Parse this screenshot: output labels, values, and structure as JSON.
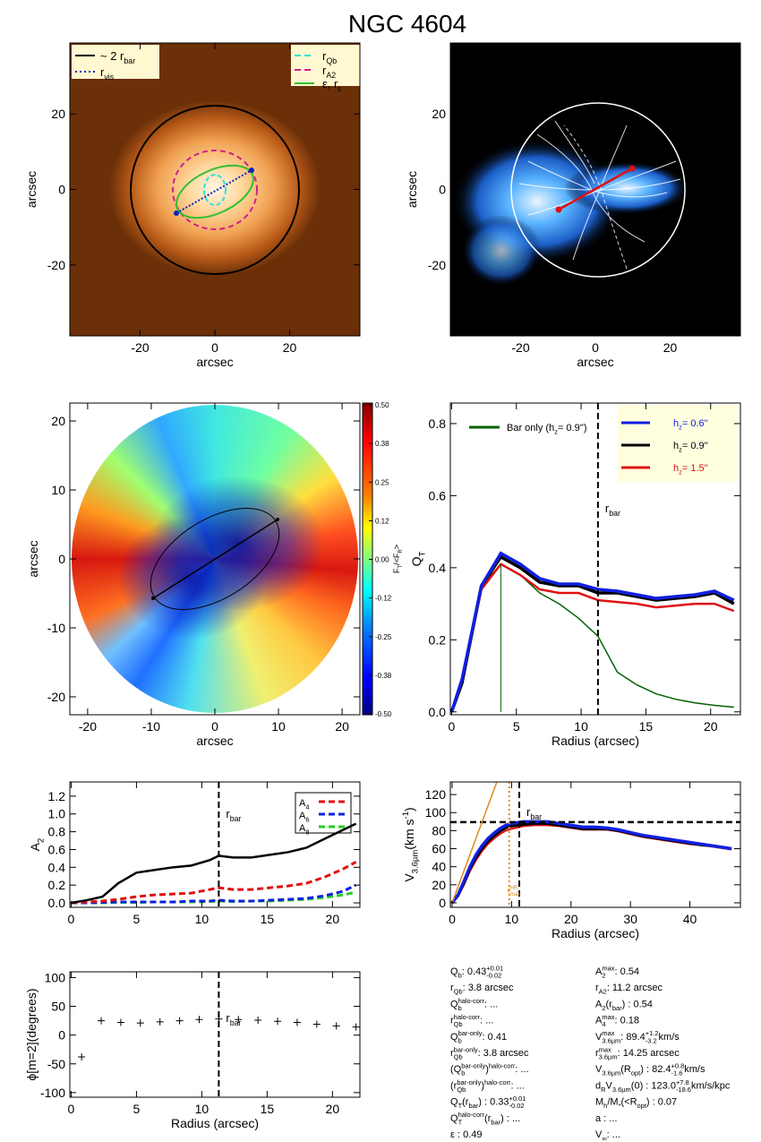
{
  "title": "NGC 4604",
  "chart_data": [
    {
      "type": "image",
      "xlabel": "arcsec",
      "ylabel": "arcsec",
      "xlim": [
        -38.8,
        38.8
      ],
      "ylim": [
        -38.8,
        38.8
      ],
      "xticks": [
        -20,
        0,
        20
      ],
      "yticks": [
        -20,
        0,
        20
      ],
      "legend": [
        {
          "label": [
            {
              "text": "~ 2 r"
            },
            {
              "sub": "bar"
            }
          ],
          "color": "#000000",
          "dash": "solid"
        },
        {
          "label": [
            {
              "text": "r"
            },
            {
              "sub": "vis"
            }
          ],
          "color": "#1020c0",
          "dash": "dotted"
        },
        {
          "label": [
            {
              "text": "r"
            },
            {
              "sub": "Qb"
            }
          ],
          "color": "#30e0e0",
          "dash": "dashed"
        },
        {
          "label": [
            {
              "text": "r"
            },
            {
              "sub": "A2"
            }
          ],
          "color": "#d0208a",
          "dash": "dashed"
        },
        {
          "label": [
            {
              "text": "ε, r"
            },
            {
              "sub": "ε"
            }
          ],
          "color": "#30c030",
          "dash": "solid"
        }
      ]
    },
    {
      "type": "image",
      "xlabel": "arcsec",
      "ylabel": "arcsec",
      "xlim": [
        -38.8,
        38.8
      ],
      "ylim": [
        -38.8,
        38.8
      ],
      "xticks": [
        -20,
        0,
        20
      ],
      "yticks": [
        -20,
        0,
        20
      ]
    },
    {
      "type": "polar_map",
      "xlabel": "arcsec",
      "ylabel": "arcsec",
      "xlim": [
        -22.8,
        22.8
      ],
      "ylim": [
        -22.6,
        22.6
      ],
      "xticks": [
        -20,
        -10,
        0,
        10,
        20
      ],
      "yticks": [
        -20,
        -10,
        0,
        10,
        20
      ],
      "colorbar": {
        "label": [
          {
            "text": "F"
          },
          {
            "sub": "T"
          },
          {
            "text": "/<F"
          },
          {
            "sub": "R"
          },
          {
            "text": ">"
          }
        ],
        "lim": [
          -0.5,
          0.5
        ],
        "ticks": [
          {
            "value": 0.5,
            "label": "0.50"
          },
          {
            "value": 0.375,
            "label": "0.38"
          },
          {
            "value": 0.25,
            "label": "0.25"
          },
          {
            "value": 0.125,
            "label": "0.12"
          },
          {
            "value": 0,
            "label": "0.00"
          },
          {
            "value": -0.125,
            "label": "-0.12"
          },
          {
            "value": -0.25,
            "label": "-0.25"
          },
          {
            "value": -0.375,
            "label": "-0.38"
          },
          {
            "value": -0.5,
            "label": "-0.50"
          }
        ]
      }
    },
    {
      "type": "line",
      "xlabel": "Radius (arcsec)",
      "ylabel": [
        {
          "text": "Q"
        },
        {
          "sub": "T"
        }
      ],
      "xlim": [
        -0.1,
        22.3
      ],
      "ylim": [
        -0.008,
        0.857
      ],
      "xticks": [
        0,
        5,
        10,
        15,
        20
      ],
      "yticks": [
        {
          "value": 0,
          "label": "0.0"
        },
        {
          "value": 0.2,
          "label": "0.2"
        },
        {
          "value": 0.4,
          "label": "0.4"
        },
        {
          "value": 0.6,
          "label": "0.6"
        },
        {
          "value": 0.8,
          "label": "0.8"
        }
      ],
      "x": [
        0,
        0.8,
        2.3,
        3.8,
        5.3,
        6.8,
        8.3,
        9.8,
        11.3,
        12.8,
        14.3,
        15.8,
        17.3,
        18.8,
        20.3,
        21.8
      ],
      "series": [
        {
          "name": [
            {
              "text": "h"
            },
            {
              "sub": "z"
            },
            {
              "text": "=  0.6''"
            }
          ],
          "color": "#1020e0",
          "values": [
            0,
            0.09,
            0.35,
            0.44,
            0.41,
            0.37,
            0.355,
            0.355,
            0.34,
            0.335,
            0.325,
            0.315,
            0.32,
            0.325,
            0.335,
            0.31
          ]
        },
        {
          "name": [
            {
              "text": "h"
            },
            {
              "sub": "z"
            },
            {
              "text": "=  0.9''"
            }
          ],
          "color": "#000000",
          "values": [
            0,
            0.08,
            0.35,
            0.43,
            0.4,
            0.36,
            0.35,
            0.35,
            0.33,
            0.33,
            0.32,
            0.31,
            0.315,
            0.32,
            0.33,
            0.3
          ]
        },
        {
          "name": [
            {
              "text": "h"
            },
            {
              "sub": "z"
            },
            {
              "text": "=  1.5''"
            }
          ],
          "color": "#e01010",
          "values": [
            0,
            0.08,
            0.34,
            0.41,
            0.38,
            0.34,
            0.33,
            0.33,
            0.31,
            0.305,
            0.3,
            0.29,
            0.295,
            0.3,
            0.3,
            0.28
          ]
        },
        {
          "name": [
            {
              "text": "Bar only (h"
            },
            {
              "sub": "z"
            },
            {
              "text": "=  0.9'')"
            }
          ],
          "color": "#006400",
          "values": [
            0,
            0.08,
            0.35,
            0.41,
            0.38,
            0.33,
            0.3,
            0.26,
            0.21,
            0.11,
            0.075,
            0.05,
            0.035,
            0.025,
            0.018,
            0.013
          ]
        }
      ],
      "vlines": [
        {
          "x": 11.3,
          "label": [
            {
              "text": "r"
            },
            {
              "sub": "bar"
            }
          ],
          "color": "#000000",
          "dash": "dashed"
        }
      ]
    },
    {
      "type": "line",
      "ylabel": [
        {
          "text": "A"
        },
        {
          "sub": "2"
        }
      ],
      "xlim": [
        -0.1,
        22.1
      ],
      "ylim": [
        -0.05,
        1.36
      ],
      "xticks": [
        0,
        5,
        10,
        15,
        20
      ],
      "yticks": [
        {
          "value": 0,
          "label": "0.0"
        },
        {
          "value": 0.2,
          "label": "0.2"
        },
        {
          "value": 0.4,
          "label": "0.4"
        },
        {
          "value": 0.6,
          "label": "0.6"
        },
        {
          "value": 0.8,
          "label": "0.8"
        },
        {
          "value": 1,
          "label": "1.0"
        },
        {
          "value": 1.2,
          "label": "1.2"
        }
      ],
      "x": [
        0,
        1.2,
        2.4,
        3.6,
        5,
        6.4,
        7.8,
        9.2,
        10.6,
        11.3,
        12.4,
        13.8,
        15.2,
        16.6,
        18,
        19.4,
        20.8,
        21.8
      ],
      "series": [
        {
          "color": "#000000",
          "dash": "solid",
          "values": [
            0,
            0.03,
            0.07,
            0.22,
            0.34,
            0.37,
            0.4,
            0.42,
            0.48,
            0.53,
            0.51,
            0.51,
            0.54,
            0.57,
            0.62,
            0.72,
            0.82,
            0.89
          ]
        },
        {
          "name": [
            {
              "text": "A"
            },
            {
              "sub": "4"
            }
          ],
          "color": "#e01010",
          "dash": "dashed",
          "values": [
            0,
            0.01,
            0.02,
            0.04,
            0.07,
            0.09,
            0.1,
            0.11,
            0.15,
            0.17,
            0.15,
            0.15,
            0.17,
            0.19,
            0.22,
            0.29,
            0.38,
            0.46
          ]
        },
        {
          "name": [
            {
              "text": "A"
            },
            {
              "sub": "6"
            }
          ],
          "color": "#1020e0",
          "dash": "dashed",
          "values": [
            0,
            0,
            0.005,
            0.01,
            0.01,
            0.01,
            0.01,
            0.02,
            0.02,
            0.03,
            0.02,
            0.02,
            0.03,
            0.04,
            0.05,
            0.08,
            0.13,
            0.2
          ]
        },
        {
          "name": [
            {
              "text": "A"
            },
            {
              "sub": "8"
            }
          ],
          "color": "#20d020",
          "dash": "dashed",
          "values": [
            0,
            0,
            0,
            0.005,
            0.005,
            0.01,
            0.01,
            0.01,
            0.015,
            0.02,
            0.015,
            0.02,
            0.02,
            0.03,
            0.04,
            0.06,
            0.09,
            0.12
          ]
        }
      ],
      "vlines": [
        {
          "x": 11.3,
          "label": [
            {
              "text": "r"
            },
            {
              "sub": "bar"
            }
          ],
          "color": "#000000",
          "dash": "dashed"
        }
      ]
    },
    {
      "type": "line",
      "xlabel": "Radius (arcsec)",
      "ylabel": [
        {
          "text": "V"
        },
        {
          "sub": "3.6µm"
        },
        {
          "text": " (km s"
        },
        {
          "sup": "-1"
        },
        {
          "text": ")"
        }
      ],
      "xlim": [
        -0.3,
        48.5
      ],
      "ylim": [
        -5,
        134
      ],
      "xticks": [
        0,
        10,
        20,
        30,
        40
      ],
      "yticks": [
        0,
        20,
        40,
        60,
        80,
        100,
        120
      ],
      "x": [
        0,
        1,
        2,
        3,
        4,
        5,
        6,
        7,
        8,
        9,
        10,
        12,
        14,
        16,
        18,
        20,
        22,
        24,
        26,
        28,
        30,
        32,
        34,
        36,
        38,
        40,
        42,
        44,
        46,
        47
      ],
      "series": [
        {
          "color": "#1020e0",
          "values": [
            0,
            9,
            24,
            40,
            53,
            63,
            71,
            77,
            82,
            86,
            88,
            90,
            90,
            90,
            88,
            86,
            84,
            84,
            83,
            81,
            78,
            75,
            73,
            71,
            69,
            67,
            65,
            63,
            61,
            60
          ]
        },
        {
          "color": "#000000",
          "values": [
            0,
            8,
            22,
            38,
            50,
            60,
            68,
            74,
            79,
            83,
            85,
            87,
            88,
            88,
            86,
            84,
            82,
            82,
            82,
            80,
            77,
            74,
            72,
            70,
            68,
            66,
            64,
            63,
            61,
            60
          ]
        },
        {
          "color": "#e01010",
          "values": [
            0,
            7,
            20,
            35,
            47,
            57,
            65,
            71,
            76,
            80,
            82,
            85,
            86,
            86,
            85,
            83,
            81,
            81,
            81,
            79,
            76,
            73,
            71,
            69,
            67,
            65,
            64,
            62,
            60,
            59
          ]
        }
      ],
      "hlines": [
        {
          "y": 89.4,
          "color": "#000000",
          "dash": "dashed"
        }
      ],
      "slope_line": {
        "slope": 17.8,
        "color": "#e08a1e"
      },
      "vlines": [
        {
          "x": 11.3,
          "label": [
            {
              "text": "r"
            },
            {
              "sub": "bar"
            }
          ],
          "color": "#000000",
          "dash": "dashed"
        },
        {
          "x": 9.6,
          "label": [
            {
              "text": "r"
            },
            {
              "sup": "HR",
              "sub": "max"
            }
          ],
          "color": "#e08a1e",
          "dash": "dotted"
        }
      ]
    },
    {
      "type": "scatter",
      "xlabel": "Radius (arcsec)",
      "ylabel": "ϕ[m=2](degrees)",
      "xlim": [
        -0.1,
        22.1
      ],
      "ylim": [
        -108,
        110
      ],
      "xticks": [
        0,
        5,
        10,
        15,
        20
      ],
      "yticks": [
        -100,
        -50,
        0,
        50,
        100
      ],
      "color": "#000000",
      "x": [
        0.8,
        2.3,
        3.8,
        5.3,
        6.8,
        8.3,
        9.8,
        11.3,
        12.8,
        14.3,
        15.8,
        17.3,
        18.8,
        20.3,
        21.8
      ],
      "values": [
        -38,
        25,
        22,
        21,
        23,
        25,
        27,
        28,
        27,
        26,
        24,
        22,
        19,
        16,
        14
      ],
      "vlines": [
        {
          "x": 11.3,
          "label": [
            {
              "text": "r"
            },
            {
              "sub": "bar"
            }
          ],
          "color": "#000000",
          "dash": "dashed"
        }
      ]
    }
  ],
  "parameters": {
    "left": [
      [
        {
          "text": "Q"
        },
        {
          "sub": "b"
        },
        {
          "text": " :  0.43"
        },
        {
          "sup": "+0.01",
          "sub": "-0.02"
        }
      ],
      [
        {
          "text": "r"
        },
        {
          "sub": "Qb"
        },
        {
          "text": " :   3.8  arcsec"
        }
      ],
      [
        {
          "text": "Q"
        },
        {
          "sup": "halo-corr",
          "sub": "b"
        },
        {
          "text": " : ..."
        }
      ],
      [
        {
          "text": "r"
        },
        {
          "sup": "halo-corr",
          "sub": "Qb"
        },
        {
          "text": " : ..."
        }
      ],
      [
        {
          "text": "Q"
        },
        {
          "sup": "bar-only",
          "sub": "b"
        },
        {
          "text": " :  0.41"
        }
      ],
      [
        {
          "text": "r"
        },
        {
          "sup": "bar-only",
          "sub": "Qb"
        },
        {
          "text": " :   3.8  arcsec"
        }
      ],
      [
        {
          "text": "(Q"
        },
        {
          "sup": "bar-only",
          "sub": "b"
        },
        {
          "text": ")"
        },
        {
          "sup": "halo-corr"
        },
        {
          "text": " : ..."
        }
      ],
      [
        {
          "text": "(r"
        },
        {
          "sup": "bar-only",
          "sub": "Qb"
        },
        {
          "text": ")"
        },
        {
          "sup": "halo-corr"
        },
        {
          "text": " : ..."
        }
      ],
      [
        {
          "text": "Q"
        },
        {
          "sub": "T"
        },
        {
          "text": "(r"
        },
        {
          "sub": "bar"
        },
        {
          "text": ") :  0.33"
        },
        {
          "sup": "+0.01",
          "sub": "-0.02"
        }
      ],
      [
        {
          "text": "Q"
        },
        {
          "sup": "halo-corr",
          "sub": "T"
        },
        {
          "text": "(r"
        },
        {
          "sub": "bar"
        },
        {
          "text": ") : ..."
        }
      ],
      [
        {
          "text": "ε :  0.49"
        }
      ]
    ],
    "right": [
      [
        {
          "text": "A"
        },
        {
          "sup": "max",
          "sub": "2"
        },
        {
          "text": " :  0.54"
        }
      ],
      [
        {
          "text": "r"
        },
        {
          "sub": "A2"
        },
        {
          "text": " :  11.2  arcsec"
        }
      ],
      [
        {
          "text": "A"
        },
        {
          "sub": "2"
        },
        {
          "text": "(r"
        },
        {
          "sub": "bar"
        },
        {
          "text": ") :  0.54"
        }
      ],
      [
        {
          "text": "A"
        },
        {
          "sup": "max",
          "sub": "4"
        },
        {
          "text": " :  0.18"
        }
      ],
      [
        {
          "text": "V"
        },
        {
          "sup": "max",
          "sub": "3.6µm"
        },
        {
          "text": " :  89.4"
        },
        {
          "sup": "+1.2",
          "sub": "-3.2"
        },
        {
          "text": " km/s"
        }
      ],
      [
        {
          "text": "r"
        },
        {
          "sup": "max",
          "sub": "3.6µm"
        },
        {
          "text": " :  14.25  arcsec"
        }
      ],
      [
        {
          "text": "V"
        },
        {
          "sub": "3.6µm"
        },
        {
          "text": "(R"
        },
        {
          "sub": "opt"
        },
        {
          "text": ") :  82.4"
        },
        {
          "sup": "+0.8",
          "sub": "-1.6"
        },
        {
          "text": " km/s"
        }
      ],
      [
        {
          "text": "d"
        },
        {
          "sub": "R"
        },
        {
          "text": "V"
        },
        {
          "sub": "3.6µm"
        },
        {
          "text": "(0) :  123.0"
        },
        {
          "sup": "+7.8",
          "sub": "-18.6"
        },
        {
          "text": " km/s/kpc"
        }
      ],
      [
        {
          "text": "M"
        },
        {
          "sub": "h"
        },
        {
          "text": "/M"
        },
        {
          "sub": "*"
        },
        {
          "text": "(<R"
        },
        {
          "sub": "opt"
        },
        {
          "text": ") :  0.07"
        }
      ],
      [
        {
          "text": "a : ..."
        }
      ],
      [
        {
          "text": "V"
        },
        {
          "sub": "∞"
        },
        {
          "text": " : ..."
        }
      ]
    ]
  }
}
